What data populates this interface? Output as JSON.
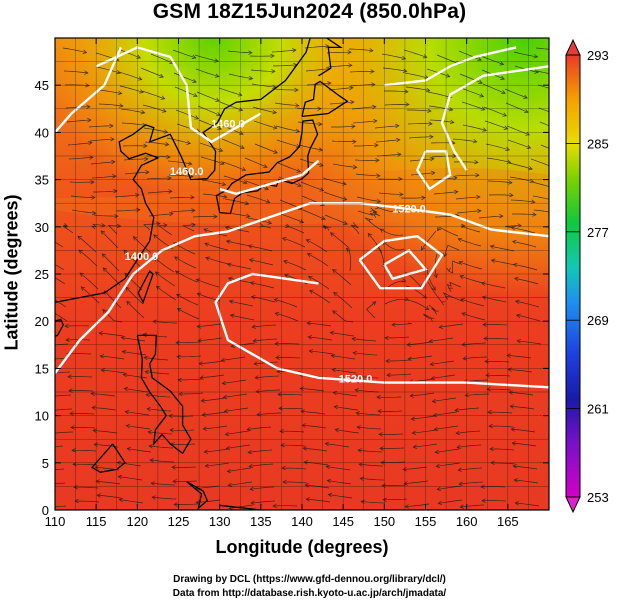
{
  "chart_data": {
    "type": "heatmap",
    "title": "GSM 18Z15Jun2024 (850.0hPa)",
    "xlabel": "Longitude (degrees)",
    "ylabel": "Latitude  (degrees)",
    "xlim": [
      110,
      170
    ],
    "ylim": [
      0,
      50
    ],
    "x_ticks": [
      "110",
      "115",
      "120",
      "125",
      "130",
      "135",
      "140",
      "145",
      "150",
      "155",
      "160",
      "165"
    ],
    "y_ticks": [
      "0",
      "5",
      "10",
      "15",
      "20",
      "25",
      "30",
      "35",
      "40",
      "45"
    ],
    "colorbar": {
      "min": 253,
      "max": 293,
      "ticks": [
        "293",
        "285",
        "277",
        "269",
        "261",
        "253"
      ]
    },
    "contours": [
      {
        "label": "1400.0",
        "lon": 120.5,
        "lat": 26.5
      },
      {
        "label": "1520.0",
        "lon": 146.5,
        "lat": 13.5
      },
      {
        "label": "1520.0",
        "lon": 153.0,
        "lat": 31.5
      },
      {
        "label": "1460.0",
        "lon": 131.0,
        "lat": 40.5
      },
      {
        "label": "1460.0",
        "lon": 126.0,
        "lat": 35.5
      }
    ],
    "overlays": [
      "coastlines",
      "streamlines",
      "grid"
    ],
    "grid": true
  },
  "credits": {
    "line1": "Drawing by DCL (https://www.gfd-dennou.org/library/dcl/)",
    "line2": "Data from http://database.rish.kyoto-u.ac.jp/arch/jmadata/"
  }
}
